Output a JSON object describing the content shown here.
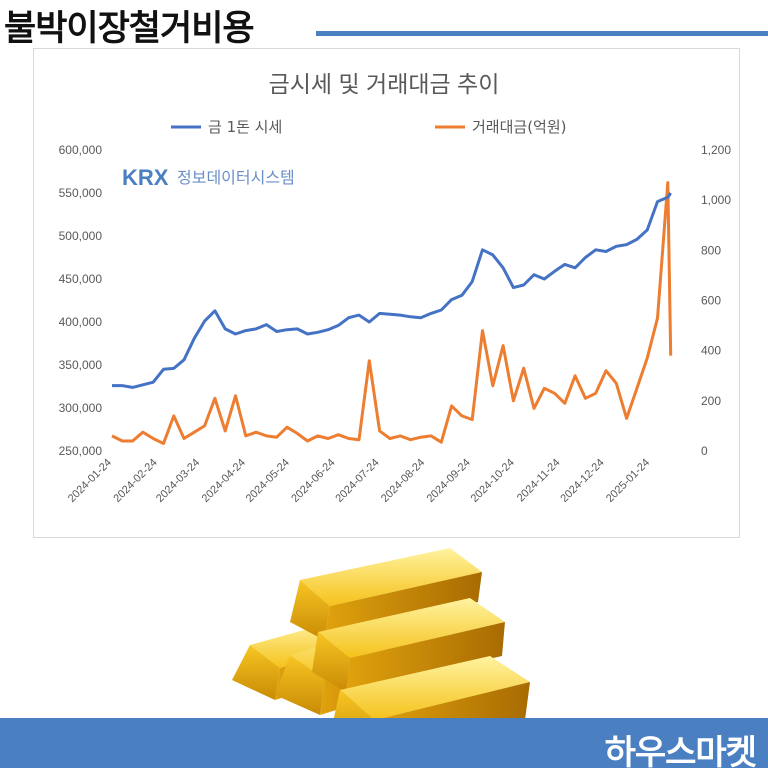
{
  "header": {
    "title": "불박이장철거비용",
    "rule_color": "#4a7fc1"
  },
  "footer": {
    "brand": "하우스마켓",
    "band_color": "#4a7fc1"
  },
  "chart_data": {
    "type": "line",
    "title": "금시세 및 거래대금 추이",
    "watermark_logo": "KRX",
    "watermark_text": "정보데이터시스템",
    "legend_position": "top",
    "grid": false,
    "x": [
      "2024-01-24",
      "2024-01-31",
      "2024-02-07",
      "2024-02-14",
      "2024-02-21",
      "2024-02-28",
      "2024-03-06",
      "2024-03-13",
      "2024-03-20",
      "2024-03-27",
      "2024-04-03",
      "2024-04-10",
      "2024-04-17",
      "2024-04-24",
      "2024-05-01",
      "2024-05-08",
      "2024-05-15",
      "2024-05-22",
      "2024-05-29",
      "2024-06-05",
      "2024-06-12",
      "2024-06-19",
      "2024-06-26",
      "2024-07-03",
      "2024-07-10",
      "2024-07-17",
      "2024-07-24",
      "2024-07-31",
      "2024-08-07",
      "2024-08-14",
      "2024-08-21",
      "2024-08-28",
      "2024-09-04",
      "2024-09-11",
      "2024-09-18",
      "2024-09-25",
      "2024-10-02",
      "2024-10-09",
      "2024-10-16",
      "2024-10-23",
      "2024-10-30",
      "2024-11-06",
      "2024-11-13",
      "2024-11-20",
      "2024-11-27",
      "2024-12-04",
      "2024-12-11",
      "2024-12-18",
      "2024-12-25",
      "2025-01-01",
      "2025-01-08",
      "2025-01-15",
      "2025-01-22",
      "2025-01-29",
      "2025-02-05",
      "2025-02-07"
    ],
    "x_tick_labels": [
      "2024-01-24",
      "2024-02-24",
      "2024-03-24",
      "2024-04-24",
      "2024-05-24",
      "2024-06-24",
      "2024-07-24",
      "2024-08-24",
      "2024-09-24",
      "2024-10-24",
      "2024-11-24",
      "2024-12-24",
      "2025-01-24"
    ],
    "y_left": {
      "ylim": [
        250000,
        600000
      ],
      "ticks": [
        "250,000",
        "300,000",
        "350,000",
        "400,000",
        "450,000",
        "500,000",
        "550,000",
        "600,000"
      ],
      "tick_values": [
        250000,
        300000,
        350000,
        400000,
        450000,
        500000,
        550000,
        600000
      ]
    },
    "y_right": {
      "ylim": [
        0,
        1200
      ],
      "ticks": [
        "0",
        "200",
        "400",
        "600",
        "800",
        "1,000",
        "1,200"
      ],
      "tick_values": [
        0,
        200,
        400,
        600,
        800,
        1000,
        1200
      ]
    },
    "series": [
      {
        "name": "금 1돈 시세",
        "axis": "left",
        "color": "#4472c4",
        "values": [
          326000,
          326000,
          324000,
          327000,
          330000,
          345000,
          346000,
          356000,
          381000,
          401000,
          413000,
          392000,
          386000,
          390000,
          392000,
          397000,
          389000,
          391000,
          392000,
          386000,
          388000,
          391000,
          396000,
          405000,
          408000,
          400000,
          410000,
          409000,
          408000,
          406000,
          405000,
          410000,
          414000,
          426000,
          431000,
          447000,
          484000,
          478000,
          463000,
          440000,
          443000,
          455000,
          450000,
          459000,
          467000,
          463000,
          475000,
          484000,
          482000,
          488000,
          490000,
          496000,
          507000,
          540000,
          545000,
          550000
        ]
      },
      {
        "name": "거래대금(억원)",
        "axis": "right",
        "color": "#ed7d31",
        "values": [
          60,
          40,
          40,
          75,
          50,
          30,
          140,
          50,
          75,
          100,
          210,
          80,
          220,
          60,
          75,
          60,
          55,
          95,
          70,
          40,
          60,
          50,
          65,
          50,
          45,
          360,
          80,
          50,
          60,
          45,
          55,
          60,
          35,
          180,
          140,
          125,
          480,
          260,
          420,
          200,
          330,
          170,
          250,
          230,
          190,
          300,
          210,
          230,
          320,
          270,
          130,
          250,
          370,
          530,
          1070,
          380
        ]
      }
    ]
  }
}
